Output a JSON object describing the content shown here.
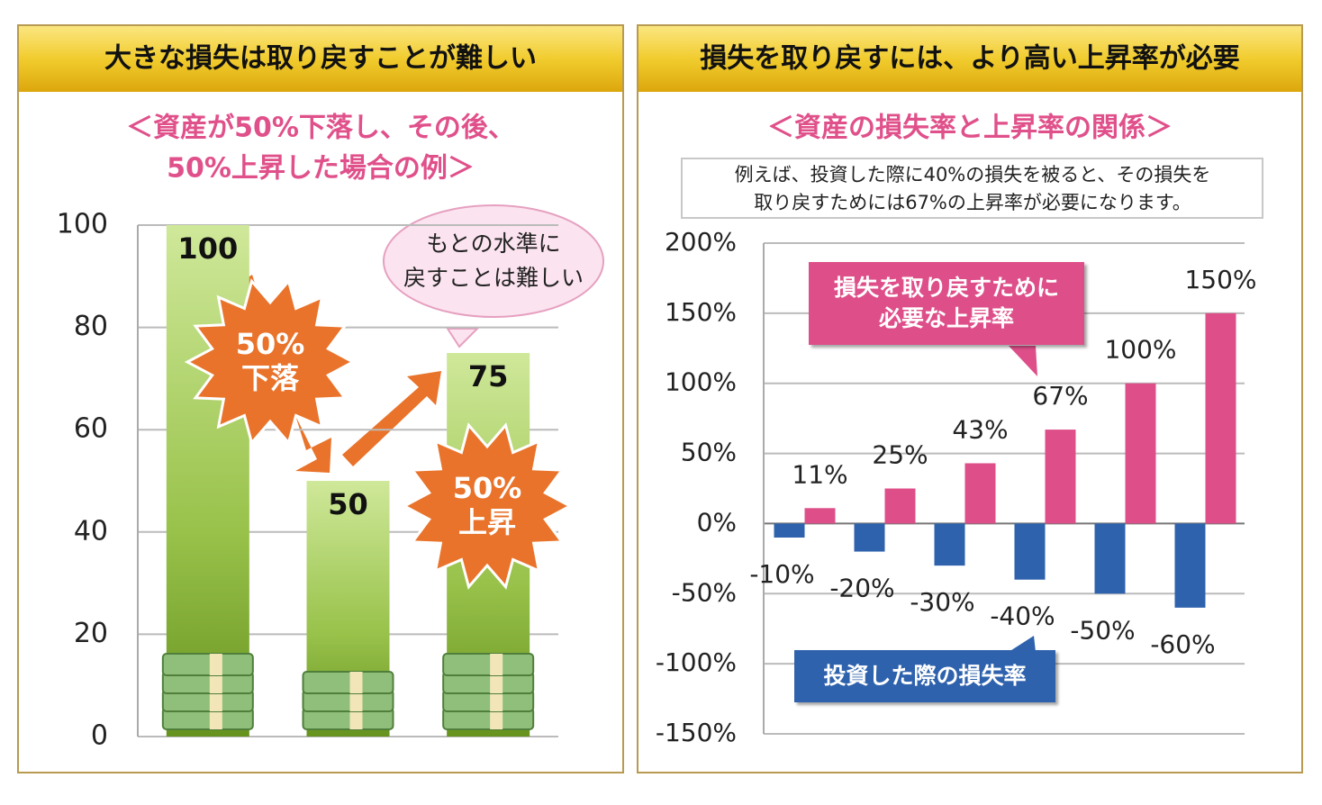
{
  "chart_data": [
    {
      "type": "bar",
      "title": "大きな損失は取り戻すことが難しい",
      "subtitle": [
        "＜資産が50%下落し、その後、",
        "50%上昇した場合の例＞"
      ],
      "categories": [
        null,
        null,
        null
      ],
      "values": [
        100,
        50,
        75
      ],
      "color": "#8cb838",
      "ylim": [
        0,
        100
      ],
      "yticks": [
        0,
        20,
        40,
        60,
        80,
        100
      ],
      "grid": true,
      "annotations": [
        [
          "50%",
          "下落"
        ],
        [
          "50%",
          "上昇"
        ],
        [
          "もとの水準に",
          "戻すことは難しい"
        ]
      ]
    },
    {
      "type": "bar",
      "title": "損失を取り戻すには、より高い上昇率が必要",
      "subtitle": "＜資産の損失率と上昇率の関係＞",
      "note": [
        "例えば、投資した際に40%の損失を被ると、その損失を",
        "取り戻すためには67%の上昇率が必要になります。"
      ],
      "categories": [
        null,
        null,
        null,
        null,
        null,
        null
      ],
      "series": [
        {
          "name": "投資した際の損失率",
          "color": "#2e62ad",
          "values": [
            -10,
            -20,
            -30,
            -40,
            -50,
            -60
          ],
          "value_labels": [
            "-10%",
            "-20%",
            "-30%",
            "-40%",
            "-50%",
            "-60%"
          ]
        },
        {
          "name": "損失を取り戻すために必要な上昇率",
          "color": "#de4f8a",
          "values": [
            11,
            25,
            43,
            67,
            100,
            150
          ],
          "value_labels": [
            "11%",
            "25%",
            "43%",
            "67%",
            "100%",
            "150%"
          ]
        }
      ],
      "ylim": [
        -150,
        200
      ],
      "yticks": [
        {
          "value": -150,
          "label": "-150%"
        },
        {
          "value": -100,
          "label": "-100%"
        },
        {
          "value": -50,
          "label": "-50%"
        },
        {
          "value": 0,
          "label": "0%"
        },
        {
          "value": 50,
          "label": "50%"
        },
        {
          "value": 100,
          "label": "100%"
        },
        {
          "value": 150,
          "label": "150%"
        },
        {
          "value": 200,
          "label": "200%"
        }
      ],
      "grid": true
    }
  ]
}
